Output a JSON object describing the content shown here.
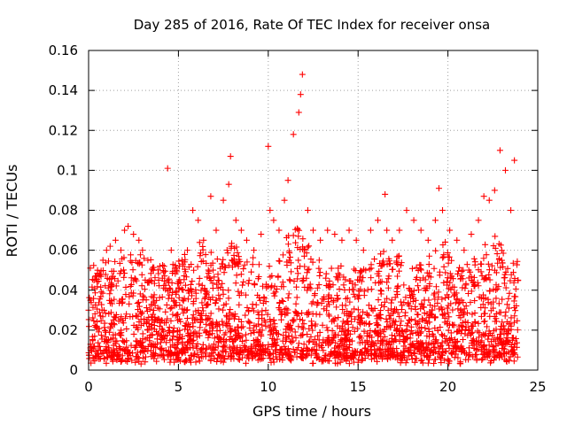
{
  "chart_data": {
    "type": "scatter",
    "title": "Day 285 of 2016, Rate Of TEC Index for receiver onsa",
    "xlabel": "GPS time / hours",
    "ylabel": "ROTI / TECUs",
    "xlim": [
      0,
      25
    ],
    "ylim": [
      0,
      0.16
    ],
    "xticks": [
      0,
      5,
      10,
      15,
      20,
      25
    ],
    "xtick_labels": [
      "0",
      "5",
      "10",
      "15",
      "20",
      "25"
    ],
    "yticks": [
      0,
      0.02,
      0.04,
      0.06,
      0.08,
      0.1,
      0.12,
      0.14,
      0.16
    ],
    "ytick_labels": [
      "0",
      "0.02",
      "0.04",
      "0.06",
      "0.08",
      "0.1",
      "0.12",
      "0.14",
      "0.16"
    ],
    "grid": true,
    "marker": "+",
    "color": "#ff0000",
    "series": [
      {
        "name": "ROTI",
        "x": [
          0.1,
          0.3,
          0.5,
          0.8,
          1.0,
          1.2,
          1.5,
          1.8,
          2.0,
          2.2,
          2.5,
          2.8,
          3.0,
          3.3,
          3.6,
          3.9,
          4.2,
          4.4,
          4.6,
          4.9,
          5.2,
          5.5,
          5.8,
          6.1,
          6.4,
          6.8,
          7.1,
          7.5,
          7.8,
          7.9,
          8.2,
          8.5,
          8.8,
          9.2,
          9.6,
          10.0,
          10.1,
          10.3,
          10.6,
          10.9,
          11.1,
          11.4,
          11.7,
          11.8,
          11.9,
          12.2,
          12.5,
          12.9,
          13.3,
          13.7,
          14.1,
          14.5,
          14.9,
          15.3,
          15.7,
          16.1,
          16.5,
          16.6,
          16.9,
          17.3,
          17.7,
          18.1,
          18.5,
          18.9,
          19.3,
          19.5,
          19.7,
          20.1,
          20.5,
          20.9,
          21.3,
          21.7,
          22.0,
          22.3,
          22.6,
          22.9,
          23.2,
          23.5,
          23.7,
          23.9
        ],
        "y": [
          0.035,
          0.045,
          0.05,
          0.055,
          0.06,
          0.062,
          0.065,
          0.06,
          0.07,
          0.072,
          0.068,
          0.065,
          0.06,
          0.055,
          0.05,
          0.045,
          0.052,
          0.101,
          0.06,
          0.05,
          0.055,
          0.06,
          0.08,
          0.075,
          0.065,
          0.087,
          0.07,
          0.085,
          0.093,
          0.107,
          0.075,
          0.07,
          0.065,
          0.06,
          0.068,
          0.112,
          0.08,
          0.075,
          0.07,
          0.085,
          0.095,
          0.118,
          0.129,
          0.138,
          0.148,
          0.08,
          0.07,
          0.065,
          0.07,
          0.068,
          0.065,
          0.07,
          0.065,
          0.06,
          0.07,
          0.075,
          0.088,
          0.07,
          0.065,
          0.07,
          0.08,
          0.075,
          0.07,
          0.065,
          0.075,
          0.091,
          0.08,
          0.07,
          0.065,
          0.06,
          0.068,
          0.075,
          0.087,
          0.085,
          0.09,
          0.11,
          0.1,
          0.08,
          0.105,
          0.045
        ]
      }
    ]
  }
}
